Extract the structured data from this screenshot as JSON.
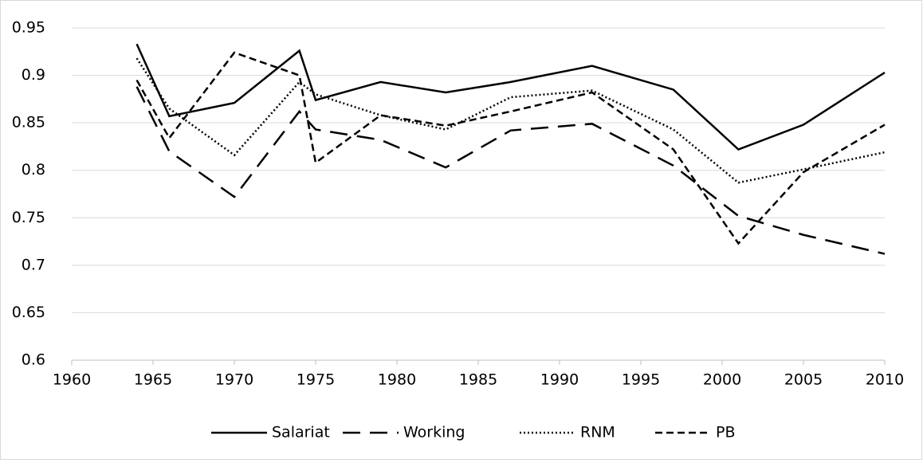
{
  "chart_data": {
    "type": "line",
    "x": [
      1964,
      1966,
      1970,
      1974,
      1975,
      1979,
      1983,
      1987,
      1992,
      1997,
      2001,
      2005,
      2010
    ],
    "series": [
      {
        "name": "Salariat",
        "color": "#000000",
        "dash": "solid",
        "values": [
          0.933,
          0.857,
          0.871,
          0.926,
          0.874,
          0.893,
          0.882,
          0.893,
          0.91,
          0.885,
          0.822,
          0.848,
          0.903
        ]
      },
      {
        "name": "Working",
        "color": "#000000",
        "dash": "long",
        "values": [
          0.888,
          0.82,
          0.772,
          0.862,
          0.843,
          0.832,
          0.803,
          0.842,
          0.849,
          0.805,
          0.752,
          0.732,
          0.712
        ]
      },
      {
        "name": "RNM",
        "color": "#000000",
        "dash": "dot",
        "values": [
          0.918,
          0.865,
          0.816,
          0.893,
          0.88,
          0.858,
          0.843,
          0.877,
          0.884,
          0.843,
          0.787,
          0.801,
          0.819
        ]
      },
      {
        "name": "PB",
        "color": "#000000",
        "dash": "short",
        "values": [
          0.895,
          0.834,
          0.924,
          0.9,
          0.808,
          0.858,
          0.847,
          0.862,
          0.882,
          0.822,
          0.723,
          0.798,
          0.848
        ]
      }
    ],
    "xlim": [
      1960,
      2010
    ],
    "xticks": [
      1960,
      1965,
      1970,
      1975,
      1980,
      1985,
      1990,
      1995,
      2000,
      2005,
      2010
    ],
    "ylim": [
      0.6,
      0.95
    ],
    "yticks": [
      0.6,
      0.65,
      0.7,
      0.75,
      0.8,
      0.85,
      0.9,
      0.95
    ],
    "grid": true,
    "legend": "bottom"
  }
}
